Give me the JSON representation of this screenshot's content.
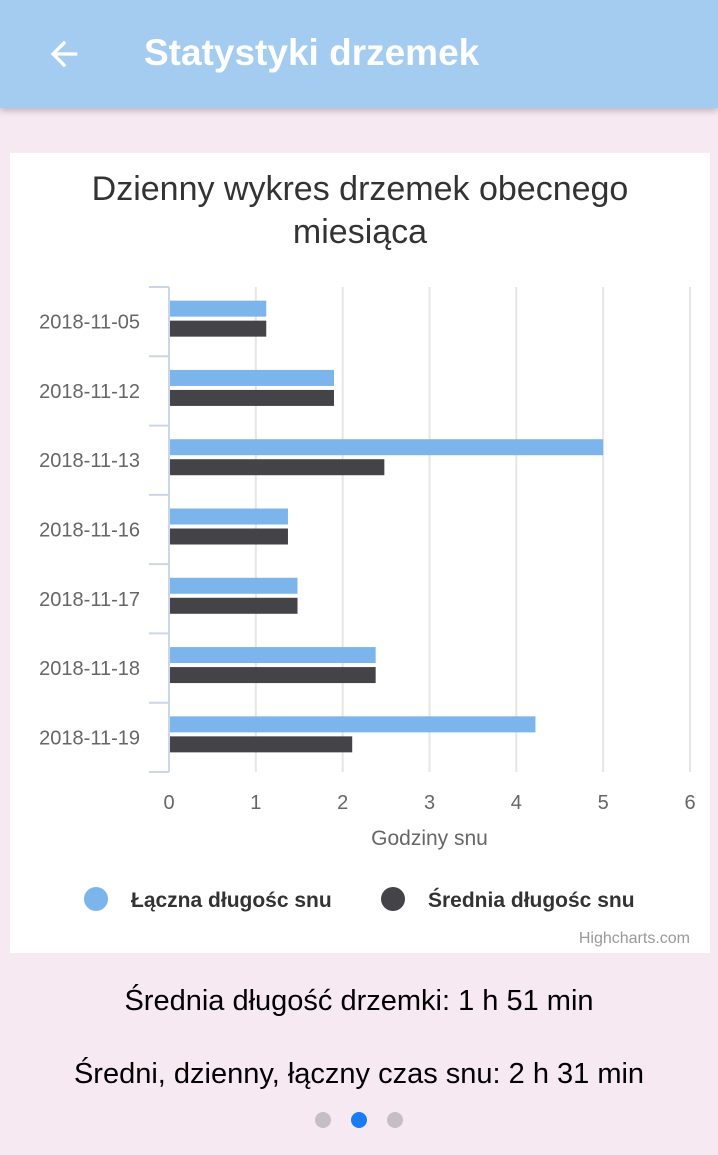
{
  "appbar": {
    "title": "Statystyki drzemek",
    "back_icon": "arrow-left-icon"
  },
  "chart_data": {
    "type": "bar",
    "orientation": "horizontal",
    "title": "Dzienny wykres drzemek obecnego miesiąca",
    "categories": [
      "2018-11-05",
      "2018-11-12",
      "2018-11-13",
      "2018-11-16",
      "2018-11-17",
      "2018-11-18",
      "2018-11-19"
    ],
    "series": [
      {
        "name": "Łączna długośc snu",
        "color": "#7cb5ec",
        "values": [
          1.12,
          1.9,
          5.0,
          1.37,
          1.48,
          2.38,
          4.22
        ]
      },
      {
        "name": "Średnia długośc snu",
        "color": "#434348",
        "values": [
          1.12,
          1.9,
          2.48,
          1.37,
          1.48,
          2.38,
          2.11
        ]
      }
    ],
    "xlabel": "Godziny snu",
    "xlim": [
      0,
      6
    ],
    "ticks": [
      "0",
      "1",
      "2",
      "3",
      "4",
      "5",
      "6"
    ],
    "grid": true,
    "legend": "bottom",
    "credits": "Highcharts.com"
  },
  "stats": {
    "avg_nap": "Średnia długość drzemki: 1 h 51 min",
    "avg_daily": "Średni, dzienny, łączny czas snu: 2 h 31 min"
  },
  "pager": {
    "active_index": 1,
    "count": 3,
    "active_color": "#1a7cf5",
    "inactive_color": "#c6bec6"
  }
}
